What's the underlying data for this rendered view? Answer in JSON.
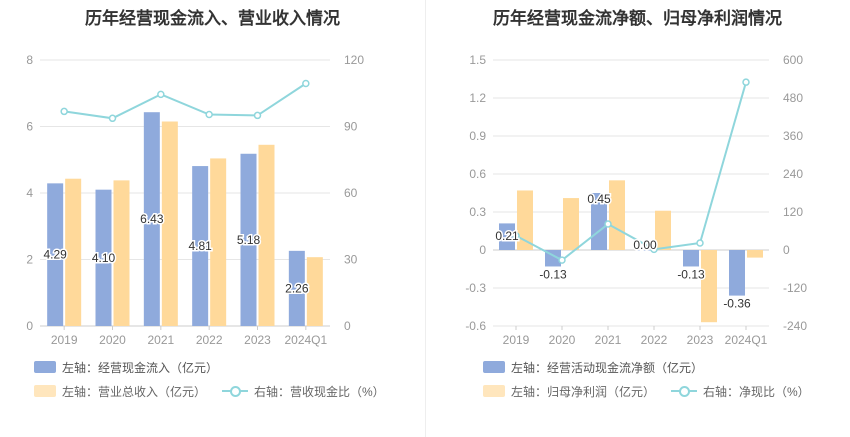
{
  "colors": {
    "bar_blue": "#8faadc",
    "bar_orange": "#ffd99a",
    "line_teal": "#8fd6dc",
    "grid": "#e6e6e6",
    "axis_text": "#999999",
    "label_text": "#333333"
  },
  "chart_data": [
    {
      "type": "bar",
      "title": "历年经营现金流入、营业收入情况",
      "categories": [
        "2019",
        "2020",
        "2021",
        "2022",
        "2023",
        "2024Q1"
      ],
      "series": [
        {
          "name": "左轴：经营现金流入（亿元）",
          "type": "bar",
          "axis": "left",
          "values": [
            4.29,
            4.1,
            6.43,
            4.81,
            5.18,
            2.26
          ],
          "labels": [
            "4.29",
            "4.10",
            "6.43",
            "4.81",
            "5.18",
            "2.26"
          ]
        },
        {
          "name": "左轴：营业总收入（亿元）",
          "type": "bar",
          "axis": "left",
          "values": [
            4.43,
            4.38,
            6.15,
            5.04,
            5.45,
            2.07
          ]
        },
        {
          "name": "右轴：营收现金比（%）",
          "type": "line",
          "axis": "right",
          "values": [
            96.8,
            93.7,
            104.5,
            95.4,
            95.0,
            109.4
          ]
        }
      ],
      "left_axis": {
        "min": 0,
        "max": 8,
        "ticks": [
          "0",
          "2",
          "4",
          "6",
          "8"
        ]
      },
      "right_axis": {
        "min": 0,
        "max": 120,
        "ticks": [
          "0",
          "30",
          "60",
          "90",
          "120"
        ]
      },
      "grid": true,
      "legend_position": "bottom-left"
    },
    {
      "type": "bar",
      "title": "历年经营现金流净额、归母净利润情况",
      "categories": [
        "2019",
        "2020",
        "2021",
        "2022",
        "2023",
        "2024Q1"
      ],
      "series": [
        {
          "name": "左轴：经营活动现金流净额（亿元）",
          "type": "bar",
          "axis": "left",
          "values": [
            0.21,
            -0.13,
            0.45,
            0.0,
            -0.13,
            -0.36
          ],
          "labels": [
            "0.21",
            "-0.13",
            "0.45",
            "0.00",
            "-0.13",
            "-0.36"
          ]
        },
        {
          "name": "左轴：归母净利润（亿元）",
          "type": "bar",
          "axis": "left",
          "values": [
            0.47,
            0.41,
            0.55,
            0.31,
            -0.57,
            -0.06
          ]
        },
        {
          "name": "右轴：净现比（%）",
          "type": "line",
          "axis": "right",
          "values": [
            45,
            -32,
            82,
            2,
            22,
            530
          ]
        }
      ],
      "left_axis": {
        "min": -0.6,
        "max": 1.5,
        "ticks": [
          "-0.6",
          "-0.3",
          "0",
          "0.3",
          "0.6",
          "0.9",
          "1.2",
          "1.5"
        ]
      },
      "right_axis": {
        "min": -240,
        "max": 600,
        "ticks": [
          "-240",
          "-120",
          "0",
          "120",
          "240",
          "360",
          "480",
          "600"
        ]
      },
      "grid": true,
      "legend_position": "bottom-left"
    }
  ]
}
